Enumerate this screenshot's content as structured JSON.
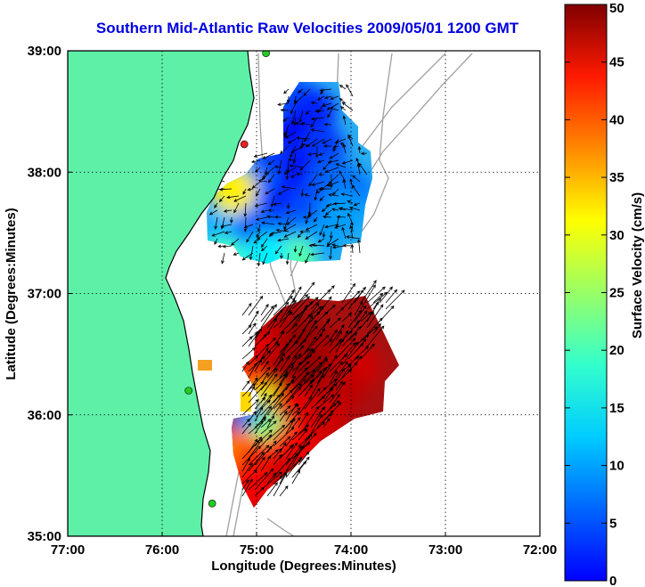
{
  "title": "Southern Mid-Atlantic Raw Velocities 2009/05/01 1200 GMT",
  "x_axis": {
    "label": "Longitude (Degrees:Minutes)",
    "ticks": [
      {
        "value": -77,
        "label": "77:00"
      },
      {
        "value": -76,
        "label": "76:00"
      },
      {
        "value": -75,
        "label": "75:00"
      },
      {
        "value": -74,
        "label": "74:00"
      },
      {
        "value": -73,
        "label": "73:00"
      },
      {
        "value": -72,
        "label": "72:00"
      }
    ],
    "range": [
      -77,
      -72
    ]
  },
  "y_axis": {
    "label": "Latitude (Degrees:Minutes)",
    "ticks": [
      {
        "value": 35,
        "label": "35:00"
      },
      {
        "value": 36,
        "label": "36:00"
      },
      {
        "value": 37,
        "label": "37:00"
      },
      {
        "value": 38,
        "label": "38:00"
      },
      {
        "value": 39,
        "label": "39:00"
      }
    ],
    "range": [
      35,
      39
    ]
  },
  "colorbar": {
    "label": "Surface Velocity (cm/s)",
    "min": 0,
    "max": 50,
    "ticks": [
      {
        "value": 0,
        "label": "0"
      },
      {
        "value": 5,
        "label": "5"
      },
      {
        "value": 10,
        "label": "10"
      },
      {
        "value": 15,
        "label": "15"
      },
      {
        "value": 20,
        "label": "20"
      },
      {
        "value": 25,
        "label": "25"
      },
      {
        "value": 30,
        "label": "30"
      },
      {
        "value": 35,
        "label": "35"
      },
      {
        "value": 40,
        "label": "40"
      },
      {
        "value": 45,
        "label": "45"
      },
      {
        "value": 50,
        "label": "50"
      }
    ],
    "colormap": "jet"
  },
  "colors": {
    "land": "#5ff0a8",
    "water": "#ffffff",
    "bathymetry": "#a0a0a0",
    "coast": "#000000",
    "station": "#22cc22",
    "station_active": "#ee2222",
    "grid": "#000000"
  },
  "chart_data": {
    "type": "heatmap",
    "grid": "dotted",
    "stations": [
      {
        "lon": -74.9,
        "lat": 38.98,
        "status": "ok"
      },
      {
        "lon": -75.13,
        "lat": 38.23,
        "status": "active"
      },
      {
        "lon": -75.72,
        "lat": 36.2,
        "status": "ok"
      },
      {
        "lon": -75.47,
        "lat": 35.27,
        "status": "ok"
      }
    ],
    "velocity_fields": [
      {
        "region": "northern",
        "cells": [
          {
            "lon": -74.6,
            "lat": 38.6,
            "speed": 10
          },
          {
            "lon": -74.4,
            "lat": 38.5,
            "speed": 8
          },
          {
            "lon": -74.6,
            "lat": 38.3,
            "speed": 6
          },
          {
            "lon": -74.3,
            "lat": 38.2,
            "speed": 9
          },
          {
            "lon": -74.8,
            "lat": 38.05,
            "speed": 9
          },
          {
            "lon": -74.5,
            "lat": 38.0,
            "speed": 7
          },
          {
            "lon": -74.2,
            "lat": 37.95,
            "speed": 11
          },
          {
            "lon": -74.0,
            "lat": 37.85,
            "speed": 12
          },
          {
            "lon": -75.0,
            "lat": 37.85,
            "speed": 12
          },
          {
            "lon": -74.7,
            "lat": 37.75,
            "speed": 8
          },
          {
            "lon": -74.4,
            "lat": 37.7,
            "speed": 10
          },
          {
            "lon": -74.1,
            "lat": 37.65,
            "speed": 14
          },
          {
            "lon": -75.2,
            "lat": 37.7,
            "speed": 13
          },
          {
            "lon": -75.3,
            "lat": 37.5,
            "speed": 15
          },
          {
            "lon": -75.0,
            "lat": 37.5,
            "speed": 11
          },
          {
            "lon": -74.7,
            "lat": 37.45,
            "speed": 12
          },
          {
            "lon": -74.4,
            "lat": 37.4,
            "speed": 14
          },
          {
            "lon": -75.25,
            "lat": 37.85,
            "speed": 32
          },
          {
            "lon": -75.35,
            "lat": 37.28,
            "speed": 22
          },
          {
            "lon": -74.6,
            "lat": 37.28,
            "speed": 23
          },
          {
            "lon": -74.9,
            "lat": 37.3,
            "speed": 18
          }
        ]
      },
      {
        "region": "southern",
        "cells": [
          {
            "lon": -74.8,
            "lat": 36.65,
            "speed": 47
          },
          {
            "lon": -74.5,
            "lat": 36.6,
            "speed": 49
          },
          {
            "lon": -74.2,
            "lat": 36.5,
            "speed": 48
          },
          {
            "lon": -73.95,
            "lat": 36.4,
            "speed": 46
          },
          {
            "lon": -75.0,
            "lat": 36.5,
            "speed": 45
          },
          {
            "lon": -74.7,
            "lat": 36.35,
            "speed": 48
          },
          {
            "lon": -74.4,
            "lat": 36.3,
            "speed": 49
          },
          {
            "lon": -74.1,
            "lat": 36.2,
            "speed": 47
          },
          {
            "lon": -75.1,
            "lat": 36.2,
            "speed": 40
          },
          {
            "lon": -74.9,
            "lat": 36.05,
            "speed": 30
          },
          {
            "lon": -74.6,
            "lat": 36.05,
            "speed": 45
          },
          {
            "lon": -74.3,
            "lat": 35.95,
            "speed": 46
          },
          {
            "lon": -75.05,
            "lat": 35.9,
            "speed": 12
          },
          {
            "lon": -74.85,
            "lat": 35.82,
            "speed": 25
          },
          {
            "lon": -74.6,
            "lat": 35.75,
            "speed": 44
          },
          {
            "lon": -75.2,
            "lat": 35.7,
            "speed": 38
          },
          {
            "lon": -74.95,
            "lat": 35.6,
            "speed": 42
          },
          {
            "lon": -74.7,
            "lat": 35.5,
            "speed": 46
          },
          {
            "lon": -75.1,
            "lat": 35.4,
            "speed": 44
          },
          {
            "lon": -75.55,
            "lat": 36.4,
            "speed": 34
          }
        ]
      }
    ]
  }
}
